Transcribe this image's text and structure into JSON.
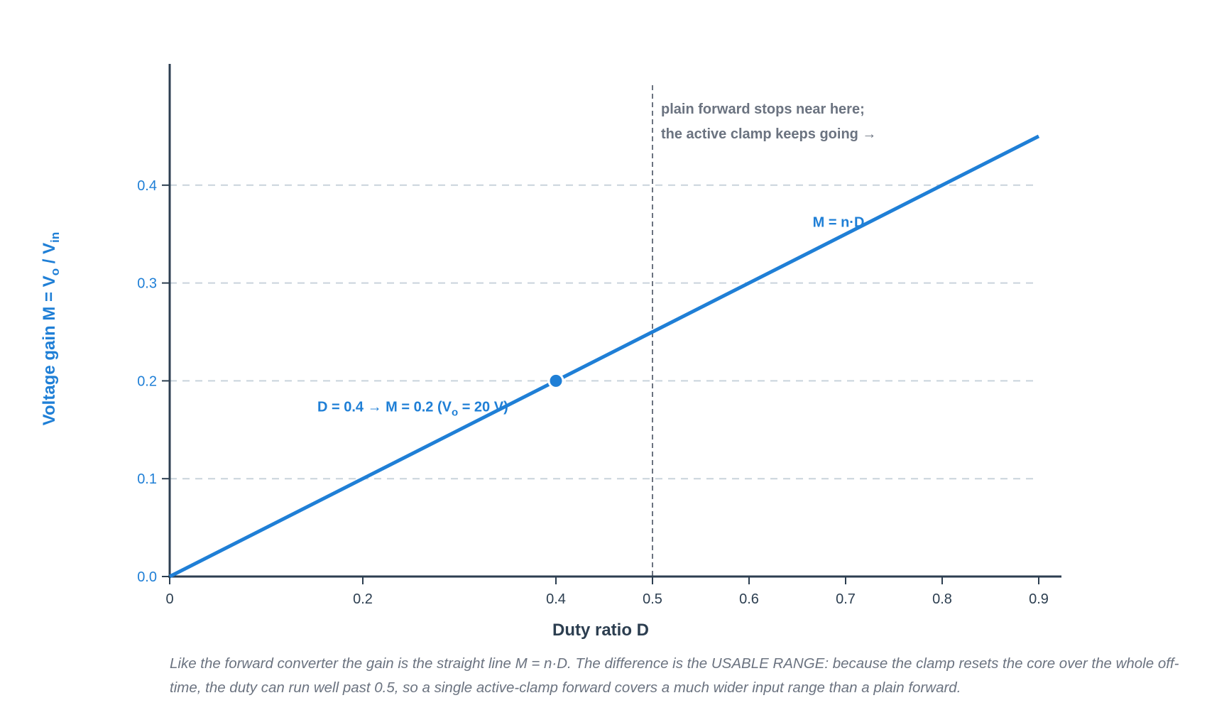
{
  "chart_data": {
    "type": "line",
    "xlabel": "Duty ratio D",
    "ylabel": {
      "pre": "Voltage gain M = V",
      "sub1": "o",
      "mid": " / V",
      "sub2": "in"
    },
    "xlim": [
      0,
      0.9
    ],
    "ylim": [
      0,
      0.5
    ],
    "x_ticks": [
      {
        "value": 0,
        "label": "0"
      },
      {
        "value": 0.2,
        "label": "0.2"
      },
      {
        "value": 0.4,
        "label": "0.4"
      },
      {
        "value": 0.5,
        "label": "0.5"
      },
      {
        "value": 0.6,
        "label": "0.6"
      },
      {
        "value": 0.7,
        "label": "0.7"
      },
      {
        "value": 0.8,
        "label": "0.8"
      },
      {
        "value": 0.9,
        "label": "0.9"
      }
    ],
    "y_ticks": [
      {
        "value": 0.0,
        "label": "0.0"
      },
      {
        "value": 0.1,
        "label": "0.1"
      },
      {
        "value": 0.2,
        "label": "0.2"
      },
      {
        "value": 0.3,
        "label": "0.3"
      },
      {
        "value": 0.4,
        "label": "0.4"
      }
    ],
    "grid": "horizontal dashed",
    "series": [
      {
        "name": "M = n·D",
        "color": "#1f7fd6",
        "x": [
          0,
          0.9
        ],
        "y": [
          0,
          0.45
        ]
      }
    ],
    "highlight_point": {
      "x": 0.4,
      "y": 0.2,
      "label": {
        "pre": "D = 0.4 → M = 0.2 (V",
        "sub": "o",
        "post": " = 20 V)"
      }
    },
    "vertical_marker": {
      "x": 0.5,
      "note_line1": "plain forward stops near here;",
      "note_line2": "the active clamp keeps going →"
    }
  },
  "caption": "Like the forward converter the gain is the straight line M = n·D. The difference is the USABLE RANGE: because the clamp resets the core over the whole off-time, the duty can run well past 0.5, so a single active-clamp forward covers a much wider input range than a plain forward.",
  "colors": {
    "accent": "#1f7fd6",
    "axis": "#2c3e50",
    "grid": "#c9d3dc",
    "annotation": "#6b7380"
  }
}
